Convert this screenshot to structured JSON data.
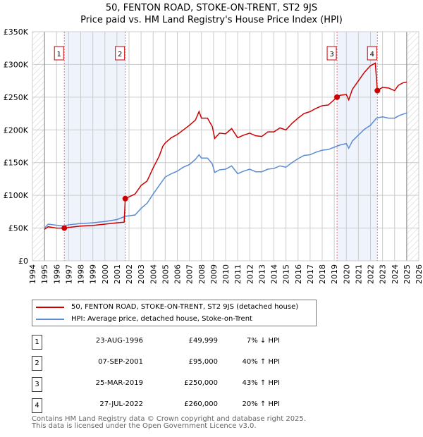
{
  "chart_data": {
    "type": "line",
    "title": "50, FENTON ROAD, STOKE-ON-TRENT, ST2 9JS",
    "subtitle": "Price paid vs. HM Land Registry's House Price Index (HPI)",
    "xlim": [
      1994,
      2026
    ],
    "ylim": [
      0,
      350000
    ],
    "x_ticks": [
      "1994",
      "1995",
      "1996",
      "1997",
      "1998",
      "1999",
      "2000",
      "2001",
      "2002",
      "2003",
      "2004",
      "2005",
      "2006",
      "2007",
      "2008",
      "2009",
      "2010",
      "2011",
      "2012",
      "2013",
      "2014",
      "2015",
      "2016",
      "2017",
      "2018",
      "2019",
      "2020",
      "2021",
      "2022",
      "2023",
      "2024",
      "2025",
      "2026"
    ],
    "y_ticks": [
      {
        "v": 0,
        "label": "£0"
      },
      {
        "v": 50000,
        "label": "£50K"
      },
      {
        "v": 100000,
        "label": "£100K"
      },
      {
        "v": 150000,
        "label": "£150K"
      },
      {
        "v": 200000,
        "label": "£200K"
      },
      {
        "v": 250000,
        "label": "£250K"
      },
      {
        "v": 300000,
        "label": "£300K"
      },
      {
        "v": 350000,
        "label": "£350K"
      }
    ],
    "grid": true,
    "shaded_ranges": [
      [
        1996.64,
        2001.69
      ],
      [
        2019.23,
        2022.57
      ]
    ],
    "hatched_ranges": [
      [
        1994,
        1995
      ],
      [
        2025,
        2026
      ]
    ],
    "series": [
      {
        "name": "50, FENTON ROAD, STOKE-ON-TRENT, ST2 9JS (detached house)",
        "color": "#cc0000",
        "x": [
          1995,
          1995.3,
          1996,
          1996.64,
          1997,
          1998,
          1999,
          2000,
          2001,
          2001.6,
          2001.69,
          2002.5,
          2003,
          2003.5,
          2004,
          2004.5,
          2004.8,
          2005,
          2005.5,
          2006,
          2006.5,
          2007,
          2007.5,
          2007.8,
          2008,
          2008.5,
          2008.9,
          2009.1,
          2009.5,
          2010,
          2010.5,
          2011,
          2011.5,
          2012,
          2012.5,
          2013,
          2013.5,
          2014,
          2014.5,
          2015,
          2015.5,
          2016,
          2016.5,
          2017,
          2017.5,
          2018,
          2018.5,
          2019.23,
          2019.5,
          2020,
          2020.2,
          2020.5,
          2021,
          2021.5,
          2022,
          2022.4,
          2022.57,
          2023,
          2023.5,
          2024,
          2024.3,
          2024.7,
          2025
        ],
        "values": [
          48000,
          52000,
          50000,
          49999,
          51000,
          53000,
          54000,
          56000,
          58000,
          59000,
          95000,
          102000,
          115000,
          122000,
          142000,
          160000,
          175000,
          180000,
          188000,
          193000,
          200000,
          207000,
          215000,
          228000,
          218000,
          218000,
          205000,
          187000,
          195000,
          194000,
          202000,
          188000,
          192000,
          195000,
          191000,
          190000,
          197000,
          197000,
          203000,
          200000,
          210000,
          218000,
          225000,
          228000,
          233000,
          237000,
          238000,
          250000,
          253000,
          254000,
          246000,
          262000,
          275000,
          288000,
          298000,
          302000,
          260000,
          265000,
          264000,
          260000,
          268000,
          272000,
          273000
        ]
      },
      {
        "name": "HPI: Average price, detached house, Stoke-on-Trent",
        "color": "#5b8bd0",
        "x": [
          1995,
          1995.3,
          1996.6,
          1997,
          1998,
          1999,
          2000,
          2001,
          2001.7,
          2002.5,
          2003,
          2003.5,
          2004,
          2004.5,
          2005,
          2005.5,
          2006,
          2006.5,
          2007,
          2007.5,
          2007.8,
          2008,
          2008.5,
          2008.9,
          2009.1,
          2009.5,
          2010,
          2010.5,
          2011,
          2011.5,
          2012,
          2012.5,
          2013,
          2013.5,
          2014,
          2014.5,
          2015,
          2015.5,
          2016,
          2016.5,
          2017,
          2017.5,
          2018,
          2018.5,
          2019.2,
          2019.5,
          2020,
          2020.2,
          2020.5,
          2021,
          2021.5,
          2022,
          2022.5,
          2023,
          2023.5,
          2024,
          2024.4,
          2025
        ],
        "values": [
          50000,
          56000,
          53000,
          55000,
          57000,
          58000,
          60000,
          63000,
          68000,
          70000,
          80000,
          88000,
          102000,
          115000,
          128000,
          133000,
          137000,
          143000,
          147000,
          155000,
          162000,
          157000,
          157000,
          148000,
          135000,
          139000,
          140000,
          145000,
          133000,
          137000,
          140000,
          136000,
          136000,
          140000,
          141000,
          145000,
          143000,
          150000,
          156000,
          161000,
          162000,
          166000,
          169000,
          170000,
          175000,
          177000,
          179000,
          172000,
          183000,
          192000,
          201000,
          207000,
          218000,
          220000,
          218000,
          218000,
          222000,
          226000
        ]
      }
    ],
    "sales": [
      {
        "n": "1",
        "x": 1996.64,
        "date": "23-AUG-1996",
        "price": "£49,999",
        "value": 49999,
        "hpi": "7% ↓ HPI"
      },
      {
        "n": "2",
        "x": 2001.69,
        "date": "07-SEP-2001",
        "price": "£95,000",
        "value": 95000,
        "hpi": "40% ↑ HPI"
      },
      {
        "n": "3",
        "x": 2019.23,
        "date": "25-MAR-2019",
        "price": "£250,000",
        "value": 250000,
        "hpi": "43% ↑ HPI"
      },
      {
        "n": "4",
        "x": 2022.57,
        "date": "27-JUL-2022",
        "price": "£260,000",
        "value": 260000,
        "hpi": "20% ↑ HPI"
      }
    ]
  },
  "footer": {
    "line1": "Contains HM Land Registry data © Crown copyright and database right 2025.",
    "line2": "This data is licensed under the Open Government Licence v3.0."
  }
}
